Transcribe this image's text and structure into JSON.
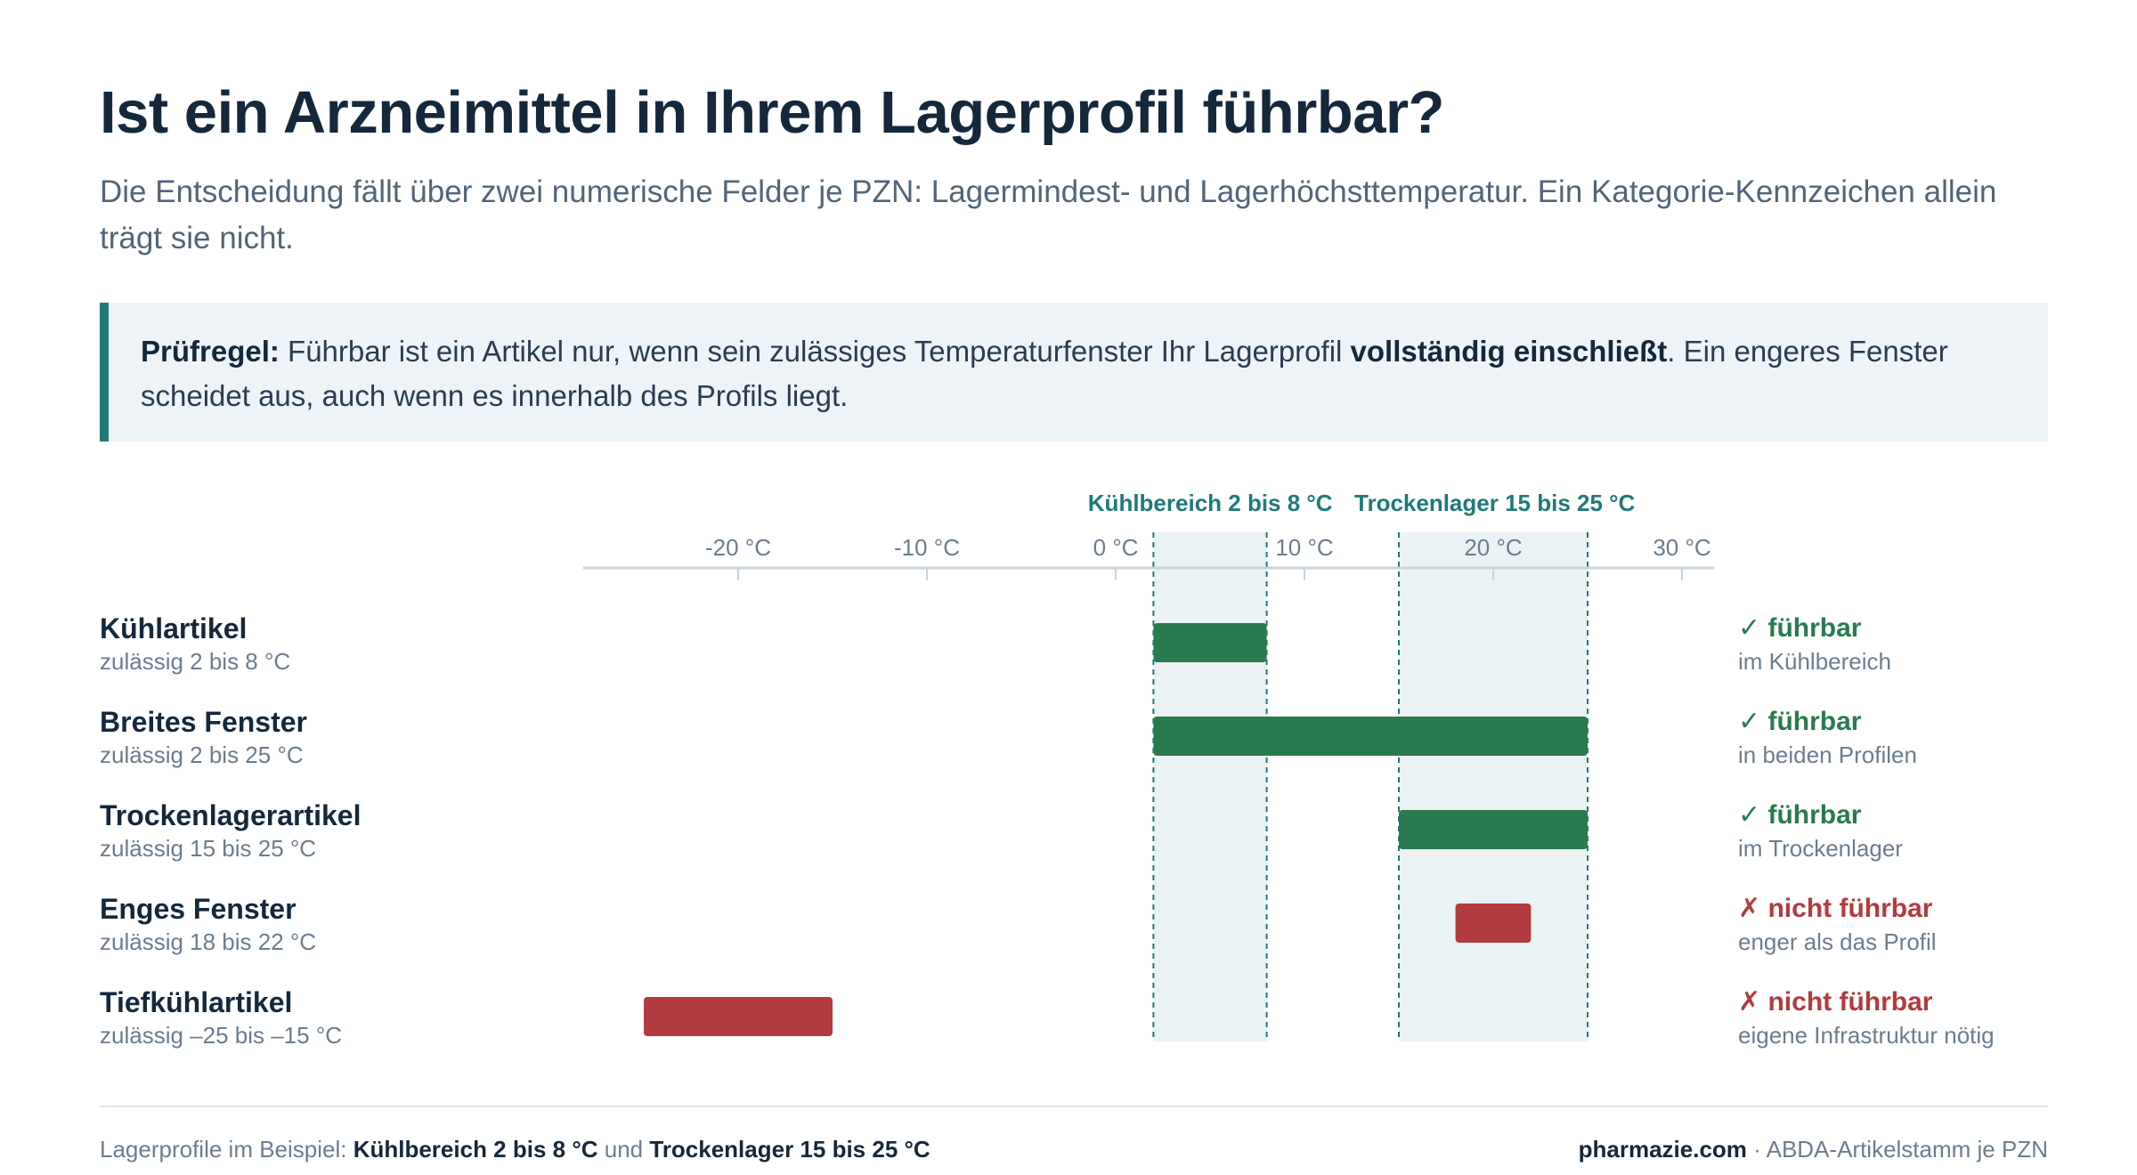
{
  "header": {
    "title": "Ist ein Arzneimittel in Ihrem Lagerprofil führbar?",
    "subtitle": "Die Entscheidung fällt über zwei numerische Felder je PZN: Lagermindest- und Lagerhöchsttemperatur. Ein Kategorie-Kennzeichen allein trägt sie nicht."
  },
  "rule": {
    "label": "Prüfregel:",
    "text_before": " Führbar ist ein Artikel nur, wenn sein zulässiges Temperaturfenster Ihr Lagerprofil ",
    "emphasis": "vollständig einschließt",
    "text_after": ". Ein engeres Fenster scheidet aus, auch wenn es innerhalb des Profils liegt."
  },
  "chart_data": {
    "type": "range-bar",
    "x_unit": "°C",
    "xlim": [
      -28,
      32
    ],
    "x_ticks": [
      -20,
      -10,
      0,
      10,
      20,
      30
    ],
    "x_tick_labels": [
      "-20 °C",
      "-10 °C",
      "0 °C",
      "10 °C",
      "20 °C",
      "30 °C"
    ],
    "profiles": [
      {
        "label": "Kühlbereich 2 bis 8 °C",
        "min": 2,
        "max": 8
      },
      {
        "label": "Trockenlager 15 bis 25 °C",
        "min": 15,
        "max": 25
      }
    ],
    "rows": [
      {
        "name": "Kühlartikel",
        "range_label": "zulässig 2 bis 8 °C",
        "min": 2,
        "max": 8,
        "ok": true,
        "status": "✓ führbar",
        "note": "im Kühlbereich"
      },
      {
        "name": "Breites Fenster",
        "range_label": "zulässig 2 bis 25 °C",
        "min": 2,
        "max": 25,
        "ok": true,
        "status": "✓ führbar",
        "note": "in beiden Profilen"
      },
      {
        "name": "Trockenlagerartikel",
        "range_label": "zulässig 15 bis 25 °C",
        "min": 15,
        "max": 25,
        "ok": true,
        "status": "✓ führbar",
        "note": "im Trockenlager"
      },
      {
        "name": "Enges Fenster",
        "range_label": "zulässig 18 bis 22 °C",
        "min": 18,
        "max": 22,
        "ok": false,
        "status": "✗ nicht führbar",
        "note": "enger als das Profil"
      },
      {
        "name": "Tiefkühlartikel",
        "range_label": "zulässig –25 bis –15 °C",
        "min": -25,
        "max": -15,
        "ok": false,
        "status": "✗ nicht führbar",
        "note": "eigene Infrastruktur nötig"
      }
    ],
    "colors": {
      "ok": "#2a7a4f",
      "bad": "#b23b3f",
      "profile": "#1f7a78",
      "profile_fill": "#eaf2f3",
      "axis": "#c9d3dc"
    }
  },
  "footer": {
    "left_prefix": "Lagerprofile im Beispiel: ",
    "left_profile1": "Kühlbereich 2 bis 8 °C",
    "left_and": " und ",
    "left_profile2": "Trockenlager 15 bis 25 °C",
    "right_brand": "pharmazie.com",
    "right_text": " · ABDA-Artikelstamm je PZN"
  }
}
